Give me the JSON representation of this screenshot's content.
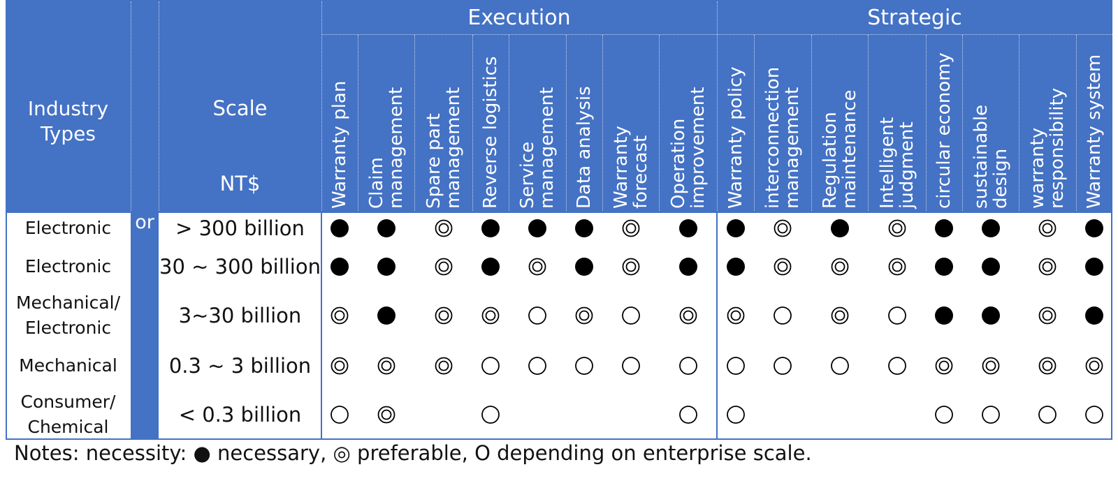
{
  "colors": {
    "header_blue": "#4472c4",
    "border_blue": "#4472c4",
    "mark_black": "#000000"
  },
  "header": {
    "industry_types": [
      "Industry",
      "Types"
    ],
    "scale": "Scale",
    "currency": "NT$",
    "or": "or",
    "groups": [
      "Execution",
      "Strategic"
    ]
  },
  "columns": [
    [
      "Warranty plan"
    ],
    [
      "Claim",
      "management"
    ],
    [
      "Spare part",
      "management"
    ],
    [
      "Reverse logistics"
    ],
    [
      "Service",
      "management"
    ],
    [
      "Data analysis"
    ],
    [
      "Warranty",
      "forecast"
    ],
    [
      "Operation",
      "improvement"
    ],
    [
      "Warranty policy"
    ],
    [
      "interconnection",
      "management"
    ],
    [
      "Regulation",
      "maintenance"
    ],
    [
      "Intelligent",
      "judgment"
    ],
    [
      "circular economy"
    ],
    [
      "sustainable",
      "design"
    ],
    [
      "warranty",
      "responsibility"
    ],
    [
      "Warranty system"
    ]
  ],
  "rows": [
    {
      "industry": [
        "Electronic"
      ],
      "scale": "> 300 billion",
      "marks": [
        "necessary",
        "necessary",
        "preferable",
        "necessary",
        "necessary",
        "necessary",
        "preferable",
        "necessary",
        "necessary",
        "preferable",
        "necessary",
        "preferable",
        "necessary",
        "necessary",
        "preferable",
        "necessary"
      ]
    },
    {
      "industry": [
        "Electronic"
      ],
      "scale": "30 ~ 300 billion",
      "marks": [
        "necessary",
        "necessary",
        "preferable",
        "necessary",
        "preferable",
        "necessary",
        "preferable",
        "necessary",
        "necessary",
        "preferable",
        "preferable",
        "preferable",
        "necessary",
        "necessary",
        "preferable",
        "necessary"
      ]
    },
    {
      "industry": [
        "Mechanical/",
        "Electronic"
      ],
      "scale": "3~30 billion",
      "marks": [
        "preferable",
        "necessary",
        "preferable",
        "preferable",
        "depending",
        "preferable",
        "depending",
        "preferable",
        "preferable",
        "depending",
        "preferable",
        "depending",
        "necessary",
        "necessary",
        "preferable",
        "necessary"
      ]
    },
    {
      "industry": [
        "Mechanical"
      ],
      "scale": "0.3 ~ 3 billion",
      "marks": [
        "preferable",
        "preferable",
        "preferable",
        "depending",
        "depending",
        "depending",
        "depending",
        "depending",
        "depending",
        "depending",
        "depending",
        "depending",
        "preferable",
        "preferable",
        "preferable",
        "preferable"
      ]
    },
    {
      "industry": [
        "Consumer/",
        "Chemical"
      ],
      "scale": "< 0.3 billion",
      "marks": [
        "depending",
        "preferable",
        "",
        "depending",
        "",
        "",
        "",
        "depending",
        "depending",
        "",
        "",
        "",
        "depending",
        "depending",
        "depending",
        "depending"
      ]
    }
  ],
  "notes": {
    "prefix": "Notes: necessity: ",
    "necessary_symbol": "●",
    "necessary_label": " necessary, ",
    "preferable_symbol": "◎",
    "preferable_label": " preferable, ",
    "depending_symbol": "O",
    "depending_label": " depending on enterprise scale."
  }
}
